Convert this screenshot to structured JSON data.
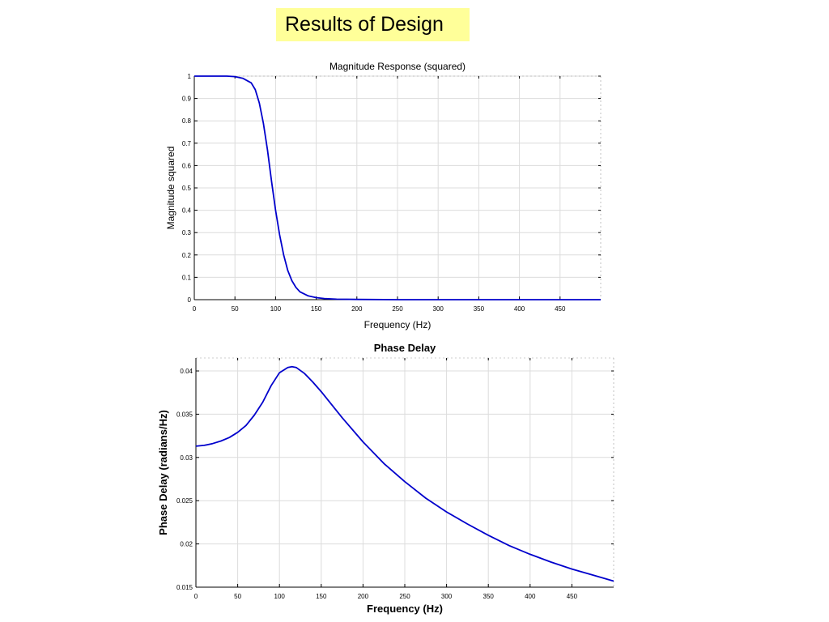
{
  "slide": {
    "title": "Results of Design"
  },
  "colors": {
    "line": "#0000cc",
    "grid": "#dcdcdc",
    "axis": "#000000",
    "title_bg": "#ffff99"
  },
  "chart_data": [
    {
      "type": "line",
      "title": "Magnitude Response (squared)",
      "xlabel": "Frequency (Hz)",
      "ylabel": "Magnitude squared",
      "xlim": [
        0,
        500
      ],
      "ylim": [
        0,
        1
      ],
      "xticks": [
        0,
        50,
        100,
        150,
        200,
        250,
        300,
        350,
        400,
        450
      ],
      "yticks": [
        0,
        0.1,
        0.2,
        0.3,
        0.4,
        0.5,
        0.6,
        0.7,
        0.8,
        0.9,
        1
      ],
      "grid": true,
      "series": [
        {
          "x": [
            0,
            40,
            50,
            60,
            70,
            75,
            80,
            85,
            90,
            95,
            100,
            105,
            110,
            115,
            120,
            125,
            130,
            140,
            150,
            160,
            175,
            200,
            250,
            300,
            400,
            500
          ],
          "y": [
            1.0,
            1.0,
            0.998,
            0.99,
            0.97,
            0.94,
            0.88,
            0.79,
            0.67,
            0.53,
            0.4,
            0.29,
            0.2,
            0.13,
            0.085,
            0.055,
            0.035,
            0.017,
            0.009,
            0.005,
            0.002,
            0.001,
            0.0,
            0.0,
            0.0,
            0.0
          ]
        }
      ]
    },
    {
      "type": "line",
      "title": "Phase Delay",
      "xlabel": "Frequency (Hz)",
      "ylabel": "Phase Delay (radians/Hz)",
      "xlim": [
        0,
        500
      ],
      "ylim": [
        0.015,
        0.0415
      ],
      "xticks": [
        0,
        50,
        100,
        150,
        200,
        250,
        300,
        350,
        400,
        450
      ],
      "yticks": [
        0.015,
        0.02,
        0.025,
        0.03,
        0.035,
        0.04
      ],
      "grid": true,
      "series": [
        {
          "x": [
            0,
            10,
            20,
            30,
            40,
            50,
            60,
            70,
            80,
            90,
            100,
            110,
            115,
            120,
            130,
            140,
            150,
            175,
            200,
            225,
            250,
            275,
            300,
            325,
            350,
            375,
            400,
            425,
            450,
            475,
            500
          ],
          "y": [
            0.0313,
            0.0314,
            0.0316,
            0.0319,
            0.0323,
            0.0329,
            0.0337,
            0.0349,
            0.0364,
            0.0383,
            0.0398,
            0.0404,
            0.0405,
            0.0404,
            0.0397,
            0.0387,
            0.0376,
            0.0346,
            0.0318,
            0.0293,
            0.0272,
            0.0253,
            0.0237,
            0.0223,
            0.021,
            0.0198,
            0.0188,
            0.0179,
            0.0171,
            0.0164,
            0.0157
          ]
        }
      ]
    }
  ]
}
